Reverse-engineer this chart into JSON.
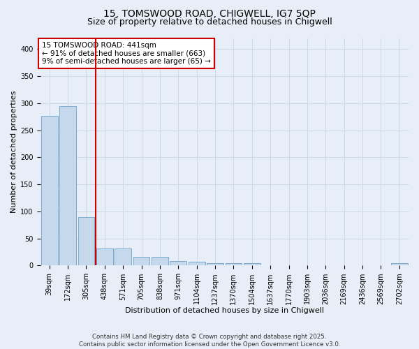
{
  "title_line1": "15, TOMSWOOD ROAD, CHIGWELL, IG7 5QP",
  "title_line2": "Size of property relative to detached houses in Chigwell",
  "xlabel": "Distribution of detached houses by size in Chigwell",
  "ylabel": "Number of detached properties",
  "categories": [
    "39sqm",
    "172sqm",
    "305sqm",
    "438sqm",
    "571sqm",
    "705sqm",
    "838sqm",
    "971sqm",
    "1104sqm",
    "1237sqm",
    "1370sqm",
    "1504sqm",
    "1637sqm",
    "1770sqm",
    "1903sqm",
    "2036sqm",
    "2169sqm",
    "2436sqm",
    "2569sqm",
    "2702sqm"
  ],
  "values": [
    277,
    295,
    90,
    31,
    32,
    16,
    16,
    8,
    7,
    5,
    4,
    4,
    0,
    0,
    0,
    0,
    0,
    0,
    0,
    4
  ],
  "bar_color": "#c5d8ec",
  "bar_edge_color": "#6ba3c8",
  "vline_color": "#cc0000",
  "vline_x_index": 2.5,
  "annotation_text": "15 TOMSWOOD ROAD: 441sqm\n← 91% of detached houses are smaller (663)\n9% of semi-detached houses are larger (65) →",
  "annotation_box_color": "#cc0000",
  "ylim": [
    0,
    420
  ],
  "yticks": [
    0,
    50,
    100,
    150,
    200,
    250,
    300,
    350,
    400
  ],
  "background_color": "#e8eef7",
  "grid_color": "#d0d8e8",
  "footer": "Contains HM Land Registry data © Crown copyright and database right 2025.\nContains public sector information licensed under the Open Government Licence v3.0.",
  "title_fontsize": 10,
  "subtitle_fontsize": 9,
  "axis_label_fontsize": 8,
  "tick_fontsize": 7,
  "annotation_fontsize": 7.5
}
